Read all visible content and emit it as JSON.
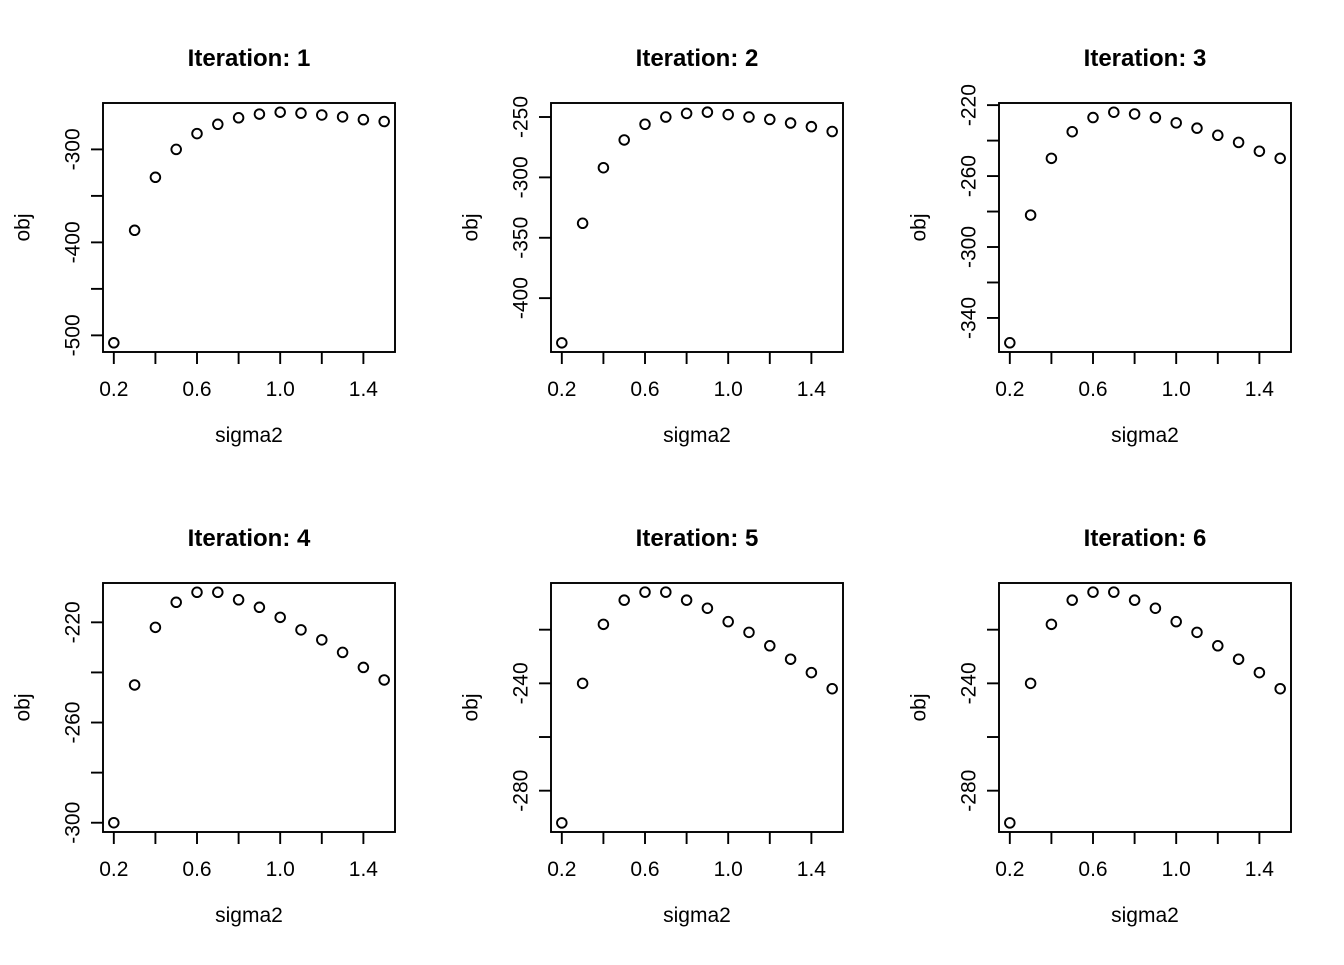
{
  "figure": {
    "background": "#ffffff",
    "foreground": "#000000",
    "marker": "open-circle",
    "grid": "off",
    "legend": "none"
  },
  "chart_data": [
    {
      "type": "scatter",
      "title": "Iteration: 1",
      "xlabel": "sigma2",
      "ylabel": "obj",
      "x": [
        0.2,
        0.3,
        0.4,
        0.5,
        0.6,
        0.7,
        0.8,
        0.9,
        1.0,
        1.1,
        1.2,
        1.3,
        1.4,
        1.5
      ],
      "y": [
        -508,
        -387,
        -330,
        -300,
        -283,
        -273,
        -266,
        -262,
        -260,
        -261,
        -263,
        -265,
        -268,
        -270
      ],
      "xlim": [
        0.148,
        1.552
      ],
      "ylim": [
        -517.9,
        -250.1
      ],
      "x_ticks": [
        0.2,
        0.4,
        0.6,
        0.8,
        1.0,
        1.2,
        1.4
      ],
      "x_labeled_ticks": [
        0.2,
        0.6,
        1.0,
        1.4
      ],
      "x_tick_labels": [
        "0.2",
        "0.6",
        "1.0",
        "1.4"
      ],
      "y_ticks": [
        -500,
        -450,
        -400,
        -350,
        -300
      ],
      "y_labeled_ticks": [
        -500,
        -400,
        -300
      ],
      "y_tick_labels": [
        "-500",
        "-400",
        "-300"
      ]
    },
    {
      "type": "scatter",
      "title": "Iteration: 2",
      "xlabel": "sigma2",
      "ylabel": "obj",
      "x": [
        0.2,
        0.3,
        0.4,
        0.5,
        0.6,
        0.7,
        0.8,
        0.9,
        1.0,
        1.1,
        1.2,
        1.3,
        1.4,
        1.5
      ],
      "y": [
        -437,
        -338,
        -292,
        -269,
        -256,
        -250,
        -247,
        -246,
        -248,
        -250,
        -252,
        -255,
        -258,
        -262
      ],
      "xlim": [
        0.148,
        1.552
      ],
      "ylim": [
        -444.6,
        -238.4
      ],
      "x_ticks": [
        0.2,
        0.4,
        0.6,
        0.8,
        1.0,
        1.2,
        1.4
      ],
      "x_labeled_ticks": [
        0.2,
        0.6,
        1.0,
        1.4
      ],
      "x_tick_labels": [
        "0.2",
        "0.6",
        "1.0",
        "1.4"
      ],
      "y_ticks": [
        -400,
        -350,
        -300,
        -250
      ],
      "y_labeled_ticks": [
        -400,
        -350,
        -300,
        -250
      ],
      "y_tick_labels": [
        "-400",
        "-350",
        "-300",
        "-250"
      ]
    },
    {
      "type": "scatter",
      "title": "Iteration: 3",
      "xlabel": "sigma2",
      "ylabel": "obj",
      "x": [
        0.2,
        0.3,
        0.4,
        0.5,
        0.6,
        0.7,
        0.8,
        0.9,
        1.0,
        1.1,
        1.2,
        1.3,
        1.4,
        1.5
      ],
      "y": [
        -354,
        -282,
        -250,
        -235,
        -227,
        -224,
        -225,
        -227,
        -230,
        -233,
        -237,
        -241,
        -246,
        -250
      ],
      "xlim": [
        0.148,
        1.552
      ],
      "ylim": [
        -359.2,
        -218.8
      ],
      "x_ticks": [
        0.2,
        0.4,
        0.6,
        0.8,
        1.0,
        1.2,
        1.4
      ],
      "x_labeled_ticks": [
        0.2,
        0.6,
        1.0,
        1.4
      ],
      "x_tick_labels": [
        "0.2",
        "0.6",
        "1.0",
        "1.4"
      ],
      "y_ticks": [
        -340,
        -320,
        -300,
        -280,
        -260,
        -240,
        -220
      ],
      "y_labeled_ticks": [
        -340,
        -300,
        -260,
        -220
      ],
      "y_tick_labels": [
        "-340",
        "-300",
        "-260",
        "-220"
      ]
    },
    {
      "type": "scatter",
      "title": "Iteration: 4",
      "xlabel": "sigma2",
      "ylabel": "obj",
      "x": [
        0.2,
        0.3,
        0.4,
        0.5,
        0.6,
        0.7,
        0.8,
        0.9,
        1.0,
        1.1,
        1.2,
        1.3,
        1.4,
        1.5
      ],
      "y": [
        -300,
        -245,
        -222,
        -212,
        -208,
        -208,
        -211,
        -214,
        -218,
        -223,
        -227,
        -232,
        -238,
        -243
      ],
      "xlim": [
        0.148,
        1.552
      ],
      "ylim": [
        -303.7,
        -204.3
      ],
      "x_ticks": [
        0.2,
        0.4,
        0.6,
        0.8,
        1.0,
        1.2,
        1.4
      ],
      "x_labeled_ticks": [
        0.2,
        0.6,
        1.0,
        1.4
      ],
      "x_tick_labels": [
        "0.2",
        "0.6",
        "1.0",
        "1.4"
      ],
      "y_ticks": [
        -300,
        -280,
        -260,
        -240,
        -220
      ],
      "y_labeled_ticks": [
        -300,
        -260,
        -220
      ],
      "y_tick_labels": [
        "-300",
        "-260",
        "-220"
      ]
    },
    {
      "type": "scatter",
      "title": "Iteration: 5",
      "xlabel": "sigma2",
      "ylabel": "obj",
      "x": [
        0.2,
        0.3,
        0.4,
        0.5,
        0.6,
        0.7,
        0.8,
        0.9,
        1.0,
        1.1,
        1.2,
        1.3,
        1.4,
        1.5
      ],
      "y": [
        -292,
        -240,
        -218,
        -209,
        -206,
        -206,
        -209,
        -212,
        -217,
        -221,
        -226,
        -231,
        -236,
        -242
      ],
      "xlim": [
        0.148,
        1.552
      ],
      "ylim": [
        -295.4,
        -202.6
      ],
      "x_ticks": [
        0.2,
        0.4,
        0.6,
        0.8,
        1.0,
        1.2,
        1.4
      ],
      "x_labeled_ticks": [
        0.2,
        0.6,
        1.0,
        1.4
      ],
      "x_tick_labels": [
        "0.2",
        "0.6",
        "1.0",
        "1.4"
      ],
      "y_ticks": [
        -280,
        -260,
        -240,
        -220
      ],
      "y_labeled_ticks": [
        -280,
        -240
      ],
      "y_tick_labels": [
        "-280",
        "-240"
      ]
    },
    {
      "type": "scatter",
      "title": "Iteration: 6",
      "xlabel": "sigma2",
      "ylabel": "obj",
      "x": [
        0.2,
        0.3,
        0.4,
        0.5,
        0.6,
        0.7,
        0.8,
        0.9,
        1.0,
        1.1,
        1.2,
        1.3,
        1.4,
        1.5
      ],
      "y": [
        -292,
        -240,
        -218,
        -209,
        -206,
        -206,
        -209,
        -212,
        -217,
        -221,
        -226,
        -231,
        -236,
        -242
      ],
      "xlim": [
        0.148,
        1.552
      ],
      "ylim": [
        -295.4,
        -202.6
      ],
      "x_ticks": [
        0.2,
        0.4,
        0.6,
        0.8,
        1.0,
        1.2,
        1.4
      ],
      "x_labeled_ticks": [
        0.2,
        0.6,
        1.0,
        1.4
      ],
      "x_tick_labels": [
        "0.2",
        "0.6",
        "1.0",
        "1.4"
      ],
      "y_ticks": [
        -280,
        -260,
        -240,
        -220
      ],
      "y_labeled_ticks": [
        -280,
        -240
      ],
      "y_tick_labels": [
        "-280",
        "-240"
      ]
    }
  ]
}
